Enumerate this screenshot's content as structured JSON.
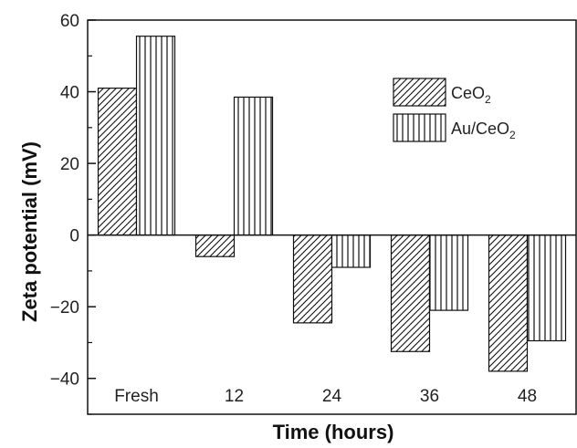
{
  "chart_data": {
    "type": "bar",
    "categories": [
      "Fresh",
      "12",
      "24",
      "36",
      "48"
    ],
    "series": [
      {
        "name": "CeO2",
        "values": [
          41,
          -6,
          -24.5,
          -32.5,
          -38
        ]
      },
      {
        "name": "Au/CeO2",
        "values": [
          55.5,
          38.5,
          -9,
          -21,
          -29.5
        ]
      }
    ],
    "xlabel": "Time (hours)",
    "ylabel": "Zeta potential (mV)",
    "ylim": [
      -50,
      60
    ],
    "yticks": [
      -40,
      -20,
      0,
      20,
      40,
      60
    ],
    "legend": {
      "position": "top-right",
      "entries": [
        {
          "base": "CeO",
          "sub": "2"
        },
        {
          "base": "Au/CeO",
          "sub": "2"
        }
      ]
    },
    "patterns": {
      "CeO2": "diagonal-hatch",
      "Au/CeO2": "vertical-hatch"
    }
  }
}
